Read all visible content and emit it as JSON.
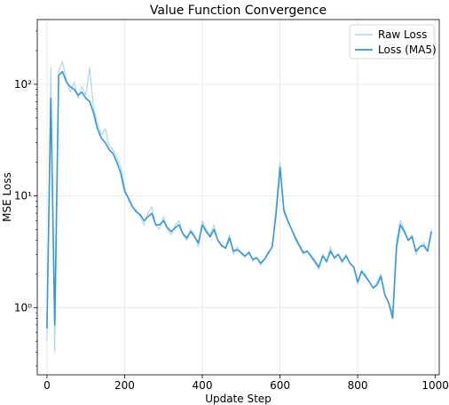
{
  "chart_data": {
    "type": "line",
    "title": "Value Function Convergence",
    "xlabel": "Update Step",
    "ylabel": "MSE Loss",
    "xlim": [
      -25,
      1010
    ],
    "ylim": [
      0.25,
      380
    ],
    "yscale": "log",
    "grid": true,
    "legend_position": "top-right",
    "x_ticks": [
      0,
      200,
      400,
      600,
      800,
      1000
    ],
    "x_tick_labels": [
      "0",
      "200",
      "400",
      "600",
      "800",
      "1000"
    ],
    "y_ticks": [
      1,
      10,
      100
    ],
    "y_tick_labels": [
      "10⁰",
      "10¹",
      "10²"
    ],
    "series": [
      {
        "name": "Raw Loss",
        "color": "#aed6f1",
        "x": [
          0,
          10,
          20,
          30,
          40,
          50,
          60,
          70,
          80,
          90,
          100,
          110,
          120,
          130,
          140,
          150,
          160,
          170,
          180,
          190,
          200,
          210,
          220,
          230,
          240,
          250,
          260,
          270,
          280,
          290,
          300,
          310,
          320,
          330,
          340,
          350,
          360,
          370,
          380,
          390,
          400,
          410,
          420,
          430,
          440,
          450,
          460,
          470,
          480,
          490,
          500,
          510,
          520,
          530,
          540,
          550,
          560,
          570,
          580,
          590,
          600,
          610,
          620,
          630,
          640,
          650,
          660,
          670,
          680,
          690,
          700,
          710,
          720,
          730,
          740,
          750,
          760,
          770,
          780,
          790,
          800,
          810,
          820,
          830,
          840,
          850,
          860,
          870,
          880,
          890,
          900,
          910,
          920,
          930,
          940,
          950,
          960,
          970,
          980,
          990
        ],
        "values": [
          0.5,
          140,
          0.4,
          130,
          160,
          110,
          85,
          105,
          75,
          95,
          80,
          140,
          60,
          45,
          35,
          40,
          28,
          26,
          22,
          18,
          12,
          9,
          8,
          7.5,
          6.5,
          5.5,
          7,
          8,
          5.5,
          5,
          6.5,
          5,
          4.5,
          5.5,
          6,
          4.5,
          4,
          5,
          4.5,
          3.5,
          6,
          5,
          4.5,
          5.5,
          4,
          3.5,
          3.5,
          4.5,
          3,
          3.5,
          3,
          2.8,
          3.2,
          2.6,
          2.8,
          2.4,
          2.7,
          3,
          3.5,
          8,
          20,
          7,
          6,
          5,
          4,
          3.5,
          3,
          3.2,
          2.8,
          2.5,
          2.2,
          3,
          2.5,
          3.5,
          2.7,
          3,
          2.5,
          3,
          2.5,
          2.3,
          1.6,
          2.2,
          2,
          1.7,
          1.5,
          1.7,
          2,
          1.3,
          1.1,
          0.9,
          4,
          6,
          5,
          4,
          4.5,
          3,
          3.5,
          3.8,
          3.2,
          5
        ]
      },
      {
        "name": "Loss (MA5)",
        "color": "#3498db",
        "x": [
          0,
          10,
          20,
          30,
          40,
          50,
          60,
          70,
          80,
          90,
          100,
          110,
          120,
          130,
          140,
          150,
          160,
          170,
          180,
          190,
          200,
          210,
          220,
          230,
          240,
          250,
          260,
          270,
          280,
          290,
          300,
          310,
          320,
          330,
          340,
          350,
          360,
          370,
          380,
          390,
          400,
          410,
          420,
          430,
          440,
          450,
          460,
          470,
          480,
          490,
          500,
          510,
          520,
          530,
          540,
          550,
          560,
          570,
          580,
          590,
          600,
          610,
          620,
          630,
          640,
          650,
          660,
          670,
          680,
          690,
          700,
          710,
          720,
          730,
          740,
          750,
          760,
          770,
          780,
          790,
          800,
          810,
          820,
          830,
          840,
          850,
          860,
          870,
          880,
          890,
          900,
          910,
          920,
          930,
          940,
          950,
          960,
          970,
          980,
          990
        ],
        "values": [
          0.65,
          75,
          0.7,
          120,
          130,
          105,
          95,
          90,
          80,
          85,
          75,
          70,
          55,
          40,
          33,
          30,
          26,
          24,
          20,
          16,
          11,
          9.5,
          8,
          7.2,
          6.8,
          6,
          6.5,
          7,
          5.5,
          5.5,
          6,
          5.2,
          4.8,
          5.2,
          5.5,
          4.6,
          4.2,
          4.8,
          4.3,
          3.8,
          5.5,
          4.8,
          4.3,
          5,
          4,
          3.6,
          3.4,
          4.2,
          3.2,
          3.3,
          3.1,
          2.9,
          3.1,
          2.7,
          2.8,
          2.5,
          2.7,
          3.1,
          3.5,
          7,
          18,
          7.5,
          6,
          5,
          4.2,
          3.6,
          3.1,
          3.2,
          2.9,
          2.6,
          2.3,
          2.9,
          2.6,
          3.2,
          2.8,
          3,
          2.6,
          2.9,
          2.5,
          2.3,
          1.7,
          2.1,
          1.9,
          1.7,
          1.5,
          1.6,
          1.9,
          1.3,
          1.1,
          0.8,
          3.5,
          5.5,
          4.8,
          4,
          4.3,
          3.2,
          3.5,
          3.6,
          3.2,
          4.8
        ]
      }
    ]
  }
}
